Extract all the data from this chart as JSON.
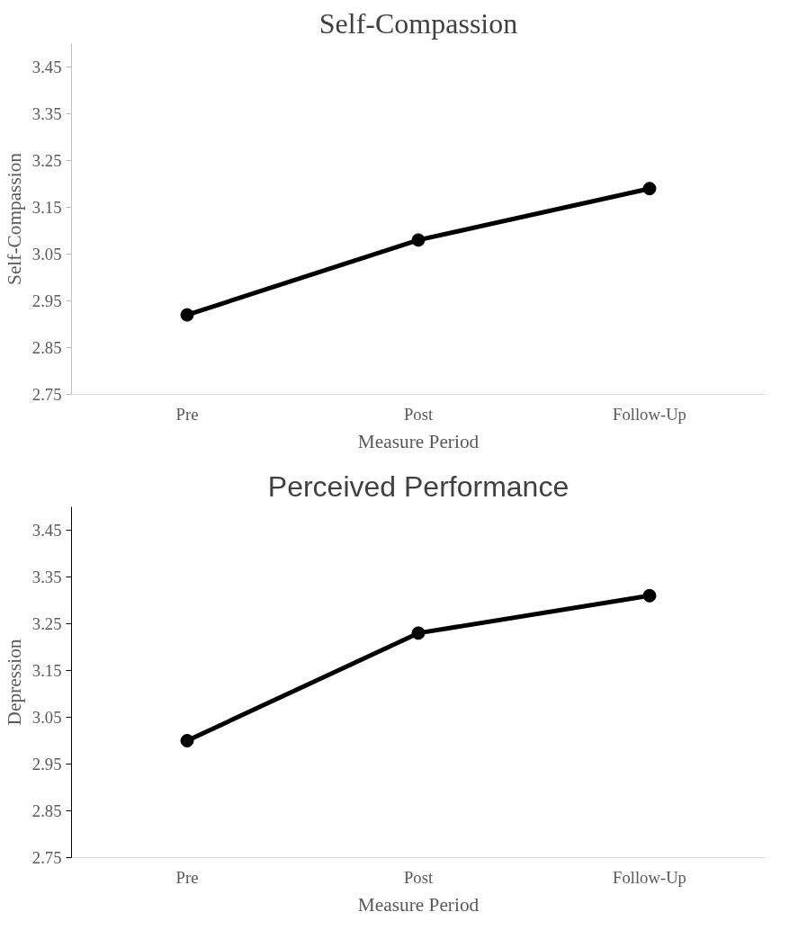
{
  "chart_data": [
    {
      "type": "line",
      "title": "Self-Compassion",
      "xlabel": "Measure Period",
      "ylabel": "Self-Compassion",
      "categories": [
        "Pre",
        "Post",
        "Follow-Up"
      ],
      "series": [
        {
          "color": "#000000",
          "values": [
            2.92,
            3.08,
            3.19
          ]
        }
      ],
      "ylim": [
        2.75,
        3.5
      ],
      "yticks": [
        2.75,
        2.85,
        2.95,
        3.05,
        3.15,
        3.25,
        3.35,
        3.45
      ],
      "marker": "circle",
      "line_style": "solid"
    },
    {
      "type": "line",
      "title": "Perceived Performance",
      "xlabel": "Measure Period",
      "ylabel": "Depression",
      "categories": [
        "Pre",
        "Post",
        "Follow-Up"
      ],
      "series": [
        {
          "color": "#000000",
          "values": [
            3.0,
            3.23,
            3.31
          ]
        }
      ],
      "ylim": [
        2.75,
        3.5
      ],
      "yticks": [
        2.75,
        2.85,
        2.95,
        3.05,
        3.15,
        3.25,
        3.35,
        3.45
      ],
      "marker": "circle",
      "line_style": "solid"
    }
  ]
}
